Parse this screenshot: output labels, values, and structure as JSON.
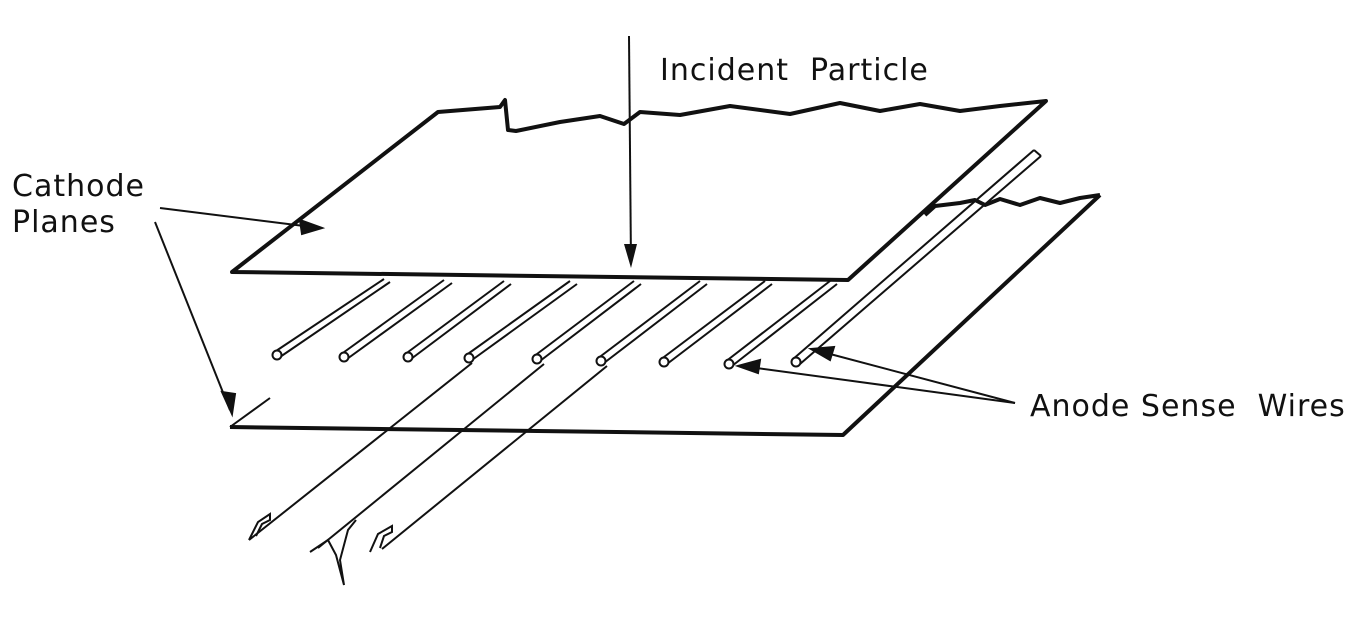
{
  "labels": {
    "incident_particle": "Incident  Particle",
    "cathode_line1": "Cathode",
    "cathode_line2": "Planes",
    "anode_sense_wires": "Anode Sense  Wires"
  },
  "colors": {
    "ink": "#111111",
    "background": "#ffffff"
  },
  "wire_count": 9
}
